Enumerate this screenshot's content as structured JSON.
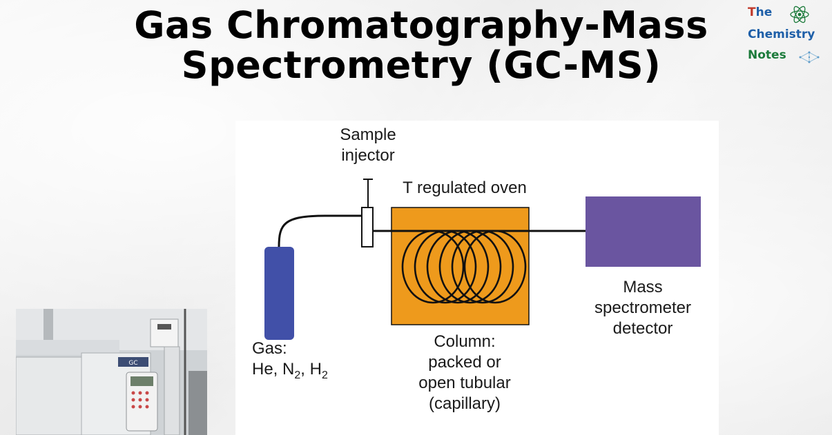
{
  "title": {
    "line1": "Gas Chromatography-Mass",
    "line2": "Spectrometry (GC-MS)"
  },
  "logo": {
    "line1_first": "T",
    "line1_rest": "he",
    "line2_first": "C",
    "line2_rest": "hemistry",
    "line3_first": "N",
    "line3_rest": "otes",
    "icon": "atom-icon"
  },
  "diagram": {
    "sample_injector": [
      "Sample",
      "injector"
    ],
    "oven": "T regulated oven",
    "gas": {
      "line1": "Gas:",
      "line2_prefix": "He, N",
      "sub1": "2",
      "sep": ", H",
      "sub2": "2"
    },
    "column": [
      "Column:",
      "packed or",
      "open tubular",
      "(capillary)"
    ],
    "detector": [
      "Mass",
      "spectrometer",
      "detector"
    ],
    "colors": {
      "gas_tank": "#4150a8",
      "oven": "#ee9a1c",
      "detector": "#6a55a0"
    }
  },
  "photo": {
    "instrument_label": "GC"
  }
}
